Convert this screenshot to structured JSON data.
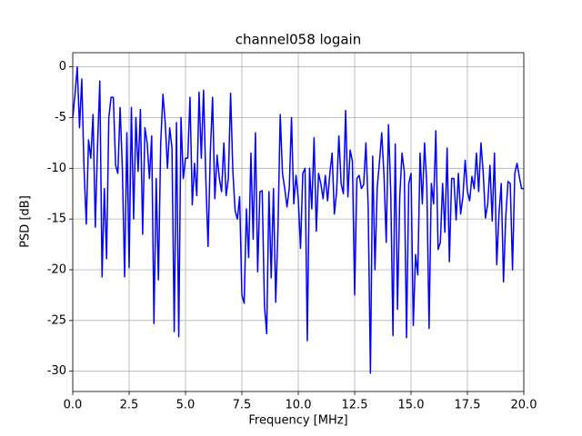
{
  "chart_data": {
    "type": "line",
    "title": "channel058 logain",
    "xlabel": "Frequency [MHz]",
    "ylabel": "PSD [dB]",
    "color": "#0000ff",
    "grid": true,
    "xlim": [
      0,
      20
    ],
    "ylim": [
      -32,
      1.4
    ],
    "xticks": [
      {
        "value": 0,
        "label": "0.0"
      },
      {
        "value": 2.5,
        "label": "2.5"
      },
      {
        "value": 5,
        "label": "5.0"
      },
      {
        "value": 7.5,
        "label": "7.5"
      },
      {
        "value": 10,
        "label": "10.0"
      },
      {
        "value": 12.5,
        "label": "12.5"
      },
      {
        "value": 15,
        "label": "15.0"
      },
      {
        "value": 17.5,
        "label": "17.5"
      },
      {
        "value": 20,
        "label": "20.0"
      }
    ],
    "yticks": [
      -30,
      -25,
      -20,
      -15,
      -10,
      -5,
      0
    ],
    "x": [
      0,
      0.1,
      0.2,
      0.3,
      0.4,
      0.5,
      0.6,
      0.7,
      0.8,
      0.9,
      1,
      1.1,
      1.2,
      1.3,
      1.4,
      1.5,
      1.6,
      1.7,
      1.8,
      1.9,
      2,
      2.1,
      2.2,
      2.3,
      2.4,
      2.5,
      2.6,
      2.7,
      2.8,
      2.9,
      3,
      3.1,
      3.2,
      3.3,
      3.4,
      3.5,
      3.6,
      3.7,
      3.8,
      3.9,
      4,
      4.1,
      4.2,
      4.3,
      4.4,
      4.5,
      4.6,
      4.7,
      4.8,
      4.9,
      5,
      5.1,
      5.2,
      5.3,
      5.4,
      5.5,
      5.6,
      5.7,
      5.8,
      5.9,
      6,
      6.1,
      6.2,
      6.3,
      6.4,
      6.5,
      6.6,
      6.7,
      6.8,
      6.9,
      7,
      7.1,
      7.2,
      7.3,
      7.4,
      7.5,
      7.6,
      7.7,
      7.8,
      7.9,
      8,
      8.1,
      8.2,
      8.3,
      8.4,
      8.5,
      8.6,
      8.7,
      8.8,
      8.9,
      9,
      9.1,
      9.2,
      9.3,
      9.4,
      9.5,
      9.6,
      9.7,
      9.8,
      9.9,
      10,
      10.1,
      10.2,
      10.3,
      10.4,
      10.5,
      10.6,
      10.7,
      10.8,
      10.9,
      11,
      11.1,
      11.2,
      11.3,
      11.4,
      11.5,
      11.6,
      11.7,
      11.8,
      11.9,
      12,
      12.1,
      12.2,
      12.3,
      12.4,
      12.5,
      12.6,
      12.7,
      12.8,
      12.9,
      13,
      13.1,
      13.2,
      13.3,
      13.4,
      13.5,
      13.6,
      13.7,
      13.8,
      13.9,
      14,
      14.1,
      14.2,
      14.3,
      14.4,
      14.5,
      14.6,
      14.7,
      14.8,
      14.9,
      15,
      15.1,
      15.2,
      15.3,
      15.4,
      15.5,
      15.6,
      15.7,
      15.8,
      15.9,
      16,
      16.1,
      16.2,
      16.3,
      16.4,
      16.5,
      16.6,
      16.7,
      16.8,
      16.9,
      17,
      17.1,
      17.2,
      17.3,
      17.4,
      17.5,
      17.6,
      17.7,
      17.8,
      17.9,
      18,
      18.1,
      18.2,
      18.3,
      18.4,
      18.5,
      18.6,
      18.7,
      18.8,
      18.9,
      19,
      19.1,
      19.2,
      19.3,
      19.4,
      19.5,
      19.6,
      19.7,
      19.8,
      19.9,
      20
    ],
    "values": [
      -5,
      -2.7,
      0,
      -6,
      -1.2,
      -10,
      -15.5,
      -7.2,
      -9,
      -4.7,
      -15.8,
      -7.7,
      -1.4,
      -20.7,
      -12,
      -18.9,
      -5,
      -3,
      -3,
      -9.7,
      -10.5,
      -4,
      -10,
      -20.7,
      -6.5,
      -19.8,
      -4,
      -15,
      -5,
      -10.3,
      -4.2,
      -16.5,
      -6,
      -7.5,
      -11,
      -6.8,
      -25.3,
      -11,
      -21,
      -7.5,
      -2.7,
      -5.5,
      -10,
      -6,
      -8,
      -26.1,
      -5.5,
      -26.6,
      -5,
      -11,
      -9,
      -9,
      -3,
      -13.6,
      -9.5,
      -12.7,
      -2.5,
      -9,
      -2.3,
      -11,
      -17.7,
      -8.5,
      -3,
      -13,
      -8.7,
      -11,
      -12.3,
      -7.5,
      -12.7,
      -11,
      -2.6,
      -10.3,
      -14.2,
      -15,
      -12.8,
      -22.5,
      -23.3,
      -14,
      -18.8,
      -8.5,
      -17,
      -6.5,
      -20.2,
      -12.3,
      -12.2,
      -23.5,
      -26.3,
      -12.3,
      -20.8,
      -12,
      -23.2,
      -16,
      -4.7,
      -10.5,
      -12,
      -13.8,
      -12,
      -5,
      -13.5,
      -10.7,
      -13,
      -17.9,
      -10.5,
      -10,
      -27,
      -10,
      -14,
      -7,
      -16.2,
      -10.5,
      -11.5,
      -13,
      -10.7,
      -13.2,
      -10.5,
      -8.5,
      -14.5,
      -12.3,
      -6.8,
      -11.5,
      -12.5,
      -4.3,
      -12.8,
      -8.2,
      -9.3,
      -22.5,
      -11,
      -10.7,
      -12,
      -11.6,
      -7.5,
      -13.8,
      -30.2,
      -8.8,
      -20,
      -11.9,
      -9.4,
      -6.5,
      -10.6,
      -17.3,
      -5.7,
      -12.3,
      -26.5,
      -7.6,
      -23.9,
      -12.8,
      -8.5,
      -10.3,
      -26.7,
      -11.5,
      -10.5,
      -25.5,
      -18.5,
      -20.5,
      -8.5,
      -13.5,
      -7.5,
      -11.7,
      -25.8,
      -11.5,
      -13.5,
      -6.3,
      -18,
      -17.3,
      -11.5,
      -16.3,
      -8,
      -19.2,
      -11,
      -11,
      -15.1,
      -10.5,
      -14.5,
      -12.8,
      -9.2,
      -12.3,
      -13.2,
      -10.8,
      -12,
      -8.5,
      -12.3,
      -7.5,
      -10.4,
      -14.9,
      -13.5,
      -9.7,
      -15.2,
      -8.5,
      -19.5,
      -14.5,
      -11.5,
      -21.2,
      -14.8,
      -11.3,
      -11.5,
      -20,
      -10.5,
      -9.5,
      -10.8,
      -12,
      -12
    ]
  }
}
